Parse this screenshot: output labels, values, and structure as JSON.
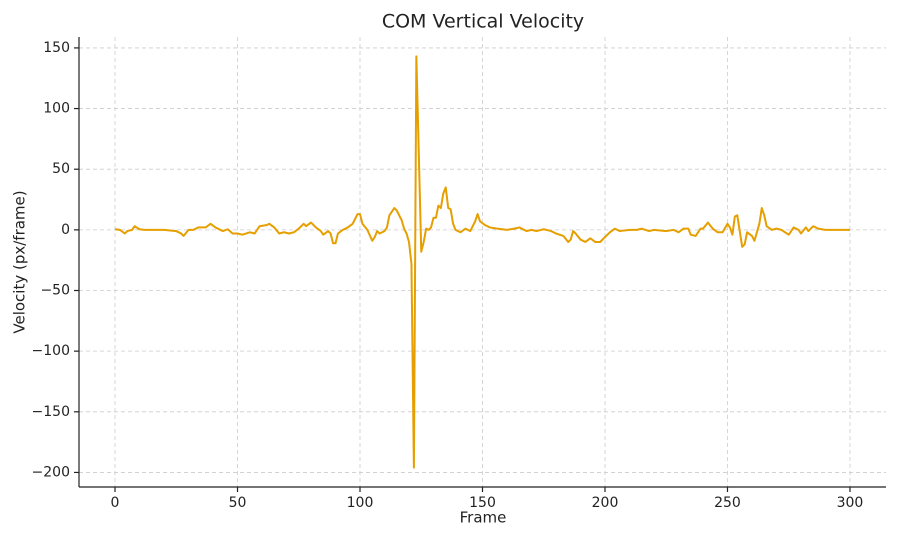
{
  "chart_data": {
    "type": "line",
    "title": "COM Vertical Velocity",
    "xlabel": "Frame",
    "ylabel": "Velocity (px/frame)",
    "xlim": [
      -14.7,
      314.7
    ],
    "ylim": [
      -212,
      159
    ],
    "xticks": [
      0,
      50,
      100,
      150,
      200,
      250,
      300
    ],
    "yticks": [
      {
        "value": -200,
        "label": "−200"
      },
      {
        "value": -150,
        "label": "−150"
      },
      {
        "value": -100,
        "label": "−100"
      },
      {
        "value": -50,
        "label": "−50"
      },
      0,
      50,
      100,
      150
    ],
    "grid": true,
    "x": [
      0,
      2,
      4,
      5,
      7,
      8,
      10,
      12,
      15,
      20,
      25,
      27,
      28,
      30,
      32,
      34,
      37,
      39,
      41,
      44,
      46,
      48,
      50,
      52,
      55,
      57,
      59,
      62,
      63,
      65,
      67,
      69,
      71,
      73,
      75,
      77,
      78,
      80,
      82,
      84,
      85,
      87,
      88,
      89,
      90,
      91,
      93,
      95,
      97,
      99,
      100,
      101,
      103,
      105,
      106,
      107,
      108,
      110,
      111,
      112,
      114,
      115,
      117,
      118,
      119,
      120,
      121,
      122,
      123,
      125,
      126,
      127,
      128,
      129,
      130,
      131,
      132,
      133,
      134,
      135,
      136,
      137,
      138,
      139,
      141,
      143,
      145,
      147,
      148,
      149,
      151,
      153,
      156,
      160,
      163,
      165,
      168,
      170,
      172,
      175,
      178,
      180,
      183,
      185,
      186,
      187,
      188,
      190,
      192,
      194,
      196,
      198,
      200,
      202,
      204,
      206,
      210,
      213,
      215,
      218,
      220,
      225,
      228,
      230,
      232,
      234,
      235,
      237,
      239,
      240,
      242,
      244,
      246,
      248,
      250,
      251,
      252,
      253,
      254,
      256,
      257,
      258,
      260,
      261,
      263,
      264,
      265,
      266,
      268,
      270,
      272,
      275,
      277,
      279,
      280,
      282,
      283,
      285,
      287,
      290,
      295,
      300
    ],
    "series": [
      {
        "name": "COM Vertical Velocity",
        "color": "#e69f00",
        "values": [
          0.5,
          0,
          -3,
          -1,
          0,
          3,
          0.5,
          0,
          0,
          0,
          -1,
          -3,
          -5,
          0,
          0,
          2,
          2,
          5,
          2,
          -1,
          0.5,
          -3,
          -3,
          -4,
          -2,
          -3,
          3,
          4,
          5,
          2,
          -3,
          -2,
          -3,
          -2,
          1,
          5,
          3,
          6,
          2,
          -1,
          -4,
          -1,
          -3,
          -11,
          -11,
          -3,
          0,
          2,
          5,
          13,
          13,
          5,
          0,
          -9,
          -6,
          -1,
          -3,
          -1,
          2,
          12,
          18,
          16,
          8,
          1,
          -3,
          -10,
          -28,
          -196,
          143,
          -18,
          -10,
          1,
          0,
          2,
          10,
          10,
          20,
          18,
          30,
          35,
          18,
          17,
          5,
          0,
          -2,
          1,
          -1,
          7,
          13,
          7,
          4,
          2,
          1,
          0,
          1,
          2,
          -1,
          0,
          -1,
          0.5,
          -1,
          -3,
          -5,
          -10,
          -8,
          -1,
          -3,
          -8,
          -10,
          -7,
          -10,
          -10,
          -6,
          -2,
          1,
          -1,
          0,
          0,
          1,
          -1,
          0,
          -1,
          0,
          -2,
          1,
          1,
          -4,
          -5,
          1,
          1,
          6,
          1,
          -2,
          -2,
          5,
          2,
          -4,
          11,
          12,
          -14,
          -12,
          -2,
          -5,
          -9,
          5,
          18,
          12,
          3,
          0,
          1,
          0,
          -4,
          2,
          0,
          -3,
          2,
          -1,
          3,
          1,
          0,
          0,
          0
        ]
      }
    ]
  }
}
